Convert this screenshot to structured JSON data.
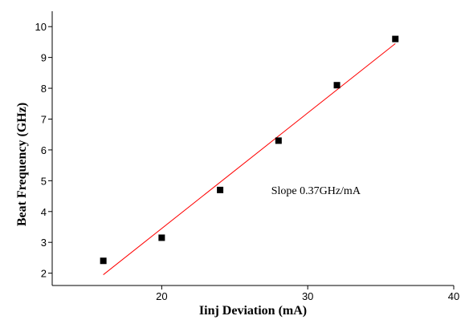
{
  "chart_data": {
    "type": "scatter",
    "title": "",
    "xlabel": "Iinj Deviation (mA)",
    "ylabel": "Beat Frequency (GHz)",
    "xlim": [
      12.5,
      40
    ],
    "ylim": [
      1.6,
      10.5
    ],
    "x_ticks": [
      20,
      30,
      40
    ],
    "y_ticks": [
      2,
      3,
      4,
      5,
      6,
      7,
      8,
      9,
      10
    ],
    "grid": false,
    "series": [
      {
        "x": [
          16,
          20,
          24,
          28,
          32,
          36
        ],
        "y": [
          2.4,
          3.15,
          4.7,
          6.3,
          8.1,
          9.6
        ],
        "marker": "square",
        "color": "#000000"
      }
    ],
    "fit_line": {
      "x": [
        16,
        36
      ],
      "y": [
        1.95,
        9.45
      ],
      "color": "#ff0000"
    },
    "annotations": [
      {
        "text": "Slope 0.37GHz/mA",
        "x": 27.5,
        "y": 4.7
      }
    ]
  }
}
